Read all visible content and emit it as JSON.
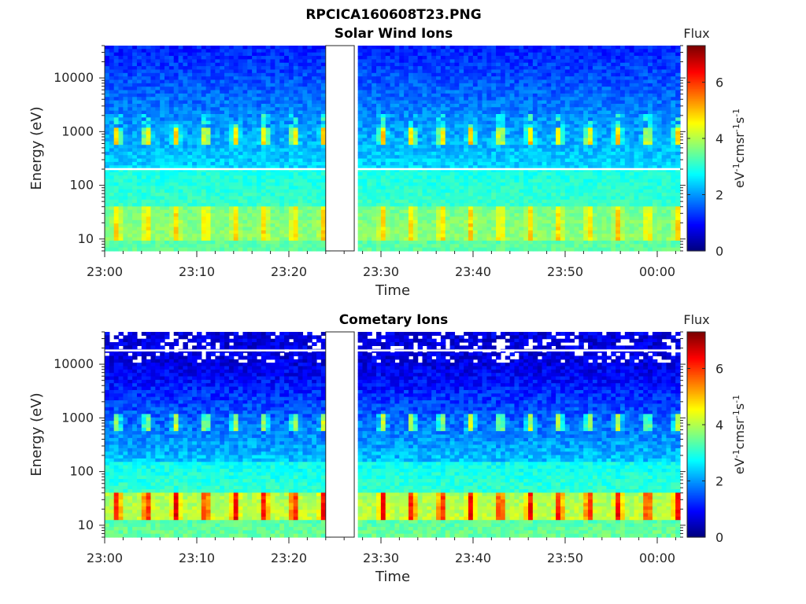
{
  "figure": {
    "title": "RPCICA160608T23.PNG"
  },
  "chart_data": [
    {
      "type": "heatmap",
      "title": "Solar Wind Ions",
      "xlabel": "Time",
      "ylabel": "Energy (eV)",
      "x_ticks": [
        "23:00",
        "23:10",
        "23:20",
        "23:30",
        "23:40",
        "23:50",
        "00:00"
      ],
      "y_ticks": [
        "10",
        "100",
        "1000",
        "10000"
      ],
      "y_scale": "log",
      "ylim": [
        6,
        40000
      ],
      "data_gap": [
        "23:24",
        "23:27"
      ],
      "colorbar": {
        "label": "Flux",
        "unit_label": "eV-1cm-2sr-1s-1",
        "range": [
          0,
          7.3
        ],
        "ticks": [
          "0",
          "2",
          "4",
          "6"
        ],
        "colormap": "jet"
      },
      "features": [
        {
          "name": "background",
          "log_flux": 1.0,
          "energy_range": [
            1500,
            40000
          ]
        },
        {
          "name": "periodic beam",
          "log_flux": 4.0,
          "energy_range": [
            600,
            1000
          ],
          "period_min": 3.2
        },
        {
          "name": "low-energy band",
          "log_flux": 4.2,
          "energy_range": [
            10,
            40
          ],
          "period_min": 3.2
        }
      ]
    },
    {
      "type": "heatmap",
      "title": "Cometary Ions",
      "xlabel": "Time",
      "ylabel": "Energy (eV)",
      "x_ticks": [
        "23:00",
        "23:10",
        "23:20",
        "23:30",
        "23:40",
        "23:50",
        "00:00"
      ],
      "y_ticks": [
        "10",
        "100",
        "1000",
        "10000"
      ],
      "y_scale": "log",
      "ylim": [
        6,
        40000
      ],
      "data_gap": [
        "23:24",
        "23:27"
      ],
      "colorbar": {
        "label": "Flux",
        "unit_label": "eV-1cm-2sr-1s-1",
        "range": [
          0,
          7.3
        ],
        "ticks": [
          "0",
          "2",
          "4",
          "6"
        ],
        "colormap": "jet"
      },
      "features": [
        {
          "name": "background",
          "log_flux": 0.8,
          "energy_range": [
            2000,
            40000
          ]
        },
        {
          "name": "periodic beam",
          "log_flux": 3.6,
          "energy_range": [
            600,
            1000
          ],
          "period_min": 3.2
        },
        {
          "name": "cometary peak",
          "log_flux": 5.6,
          "energy_range": [
            12,
            40
          ],
          "period_min": 3.2
        }
      ]
    }
  ]
}
